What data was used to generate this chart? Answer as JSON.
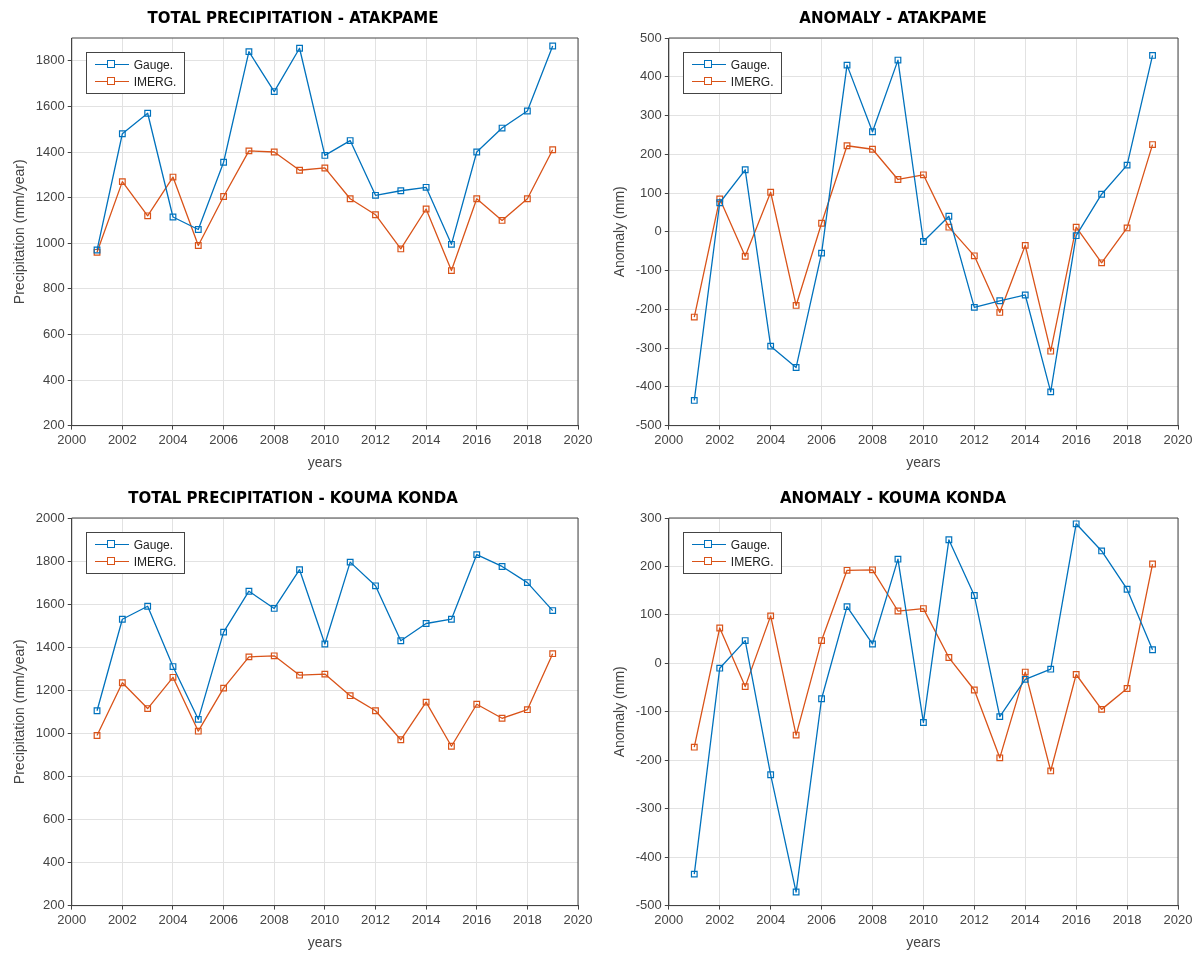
{
  "chart_data": [
    {
      "type": "line",
      "title": "TOTAL PRECIPITATION - ATAKPAME",
      "xlabel": "years",
      "ylabel": "Precipitation (mm/year)",
      "x": [
        2001,
        2002,
        2003,
        2004,
        2005,
        2006,
        2007,
        2008,
        2009,
        2010,
        2011,
        2012,
        2013,
        2014,
        2015,
        2016,
        2017,
        2018,
        2019
      ],
      "xlim": [
        2000,
        2020
      ],
      "xticks": [
        2000,
        2002,
        2004,
        2006,
        2008,
        2010,
        2012,
        2014,
        2016,
        2018,
        2020
      ],
      "ylim": [
        200,
        1900
      ],
      "yticks": [
        200,
        400,
        600,
        800,
        1000,
        1200,
        1400,
        1600,
        1800
      ],
      "grid": true,
      "legend": "top left",
      "marker": "square",
      "line_style": "solid",
      "series": [
        {
          "name": "Gauge.",
          "color": "#0072bd",
          "values": [
            970,
            1480,
            1570,
            1115,
            1060,
            1355,
            1840,
            1665,
            1855,
            1385,
            1450,
            1210,
            1230,
            1245,
            995,
            1400,
            1505,
            1580,
            1865
          ]
        },
        {
          "name": "IMERG.",
          "color": "#d95319",
          "values": [
            960,
            1270,
            1120,
            1290,
            990,
            1205,
            1405,
            1400,
            1320,
            1330,
            1195,
            1125,
            975,
            1150,
            880,
            1195,
            1100,
            1195,
            1410
          ]
        }
      ]
    },
    {
      "type": "line",
      "title": "ANOMALY - ATAKPAME",
      "xlabel": "years",
      "ylabel": "Anomaly (mm)",
      "x": [
        2001,
        2002,
        2003,
        2004,
        2005,
        2006,
        2007,
        2008,
        2009,
        2010,
        2011,
        2012,
        2013,
        2014,
        2015,
        2016,
        2017,
        2018,
        2019
      ],
      "xlim": [
        2000,
        2020
      ],
      "xticks": [
        2000,
        2002,
        2004,
        2006,
        2008,
        2010,
        2012,
        2014,
        2016,
        2018,
        2020
      ],
      "ylim": [
        -500,
        500
      ],
      "yticks": [
        -500,
        -400,
        -300,
        -200,
        -100,
        0,
        100,
        200,
        300,
        400,
        500
      ],
      "grid": true,
      "legend": "top left",
      "marker": "square",
      "line_style": "solid",
      "series": [
        {
          "name": "Gauge.",
          "color": "#0072bd",
          "values": [
            -435,
            75,
            160,
            -295,
            -350,
            -55,
            430,
            258,
            443,
            -25,
            40,
            -195,
            -178,
            -163,
            -413,
            -10,
            97,
            172,
            455
          ]
        },
        {
          "name": "IMERG.",
          "color": "#d95319",
          "values": [
            -220,
            85,
            -63,
            102,
            -190,
            22,
            222,
            213,
            135,
            147,
            12,
            -62,
            -208,
            -35,
            -308,
            12,
            -80,
            10,
            225
          ]
        }
      ]
    },
    {
      "type": "line",
      "title": "TOTAL PRECIPITATION - KOUMA KONDA",
      "xlabel": "years",
      "ylabel": "Precipitation (mm/year)",
      "x": [
        2001,
        2002,
        2003,
        2004,
        2005,
        2006,
        2007,
        2008,
        2009,
        2010,
        2011,
        2012,
        2013,
        2014,
        2015,
        2016,
        2017,
        2018,
        2019
      ],
      "xlim": [
        2000,
        2020
      ],
      "xticks": [
        2000,
        2002,
        2004,
        2006,
        2008,
        2010,
        2012,
        2014,
        2016,
        2018,
        2020
      ],
      "ylim": [
        200,
        2000
      ],
      "yticks": [
        200,
        400,
        600,
        800,
        1000,
        1200,
        1400,
        1600,
        1800,
        2000
      ],
      "grid": true,
      "legend": "top left",
      "marker": "square",
      "line_style": "solid",
      "series": [
        {
          "name": "Gauge.",
          "color": "#0072bd",
          "values": [
            1105,
            1530,
            1590,
            1310,
            1065,
            1470,
            1660,
            1580,
            1760,
            1415,
            1795,
            1685,
            1430,
            1510,
            1530,
            1830,
            1775,
            1700,
            1570
          ]
        },
        {
          "name": "IMERG.",
          "color": "#d95319",
          "values": [
            990,
            1235,
            1115,
            1260,
            1010,
            1210,
            1355,
            1360,
            1270,
            1275,
            1175,
            1105,
            970,
            1145,
            940,
            1135,
            1070,
            1110,
            1370
          ]
        }
      ]
    },
    {
      "type": "line",
      "title": "ANOMALY - KOUMA KONDA",
      "xlabel": "years",
      "ylabel": "Anomaly (mm)",
      "x": [
        2001,
        2002,
        2003,
        2004,
        2005,
        2006,
        2007,
        2008,
        2009,
        2010,
        2011,
        2012,
        2013,
        2014,
        2015,
        2016,
        2017,
        2018,
        2019
      ],
      "xlim": [
        2000,
        2020
      ],
      "xticks": [
        2000,
        2002,
        2004,
        2006,
        2008,
        2010,
        2012,
        2014,
        2016,
        2018,
        2020
      ],
      "ylim": [
        -500,
        300
      ],
      "yticks": [
        -500,
        -400,
        -300,
        -200,
        -100,
        0,
        100,
        200,
        300
      ],
      "grid": true,
      "legend": "top left",
      "marker": "square",
      "line_style": "solid",
      "series": [
        {
          "name": "Gauge.",
          "color": "#0072bd",
          "values": [
            -435,
            -10,
            47,
            -230,
            -472,
            -73,
            117,
            40,
            215,
            -122,
            255,
            140,
            -110,
            -33,
            -12,
            288,
            232,
            153,
            28
          ]
        },
        {
          "name": "IMERG.",
          "color": "#d95319",
          "values": [
            -173,
            73,
            -48,
            98,
            -148,
            47,
            192,
            193,
            108,
            113,
            12,
            -55,
            -195,
            -18,
            -222,
            -23,
            -95,
            -52,
            205
          ]
        }
      ]
    }
  ]
}
